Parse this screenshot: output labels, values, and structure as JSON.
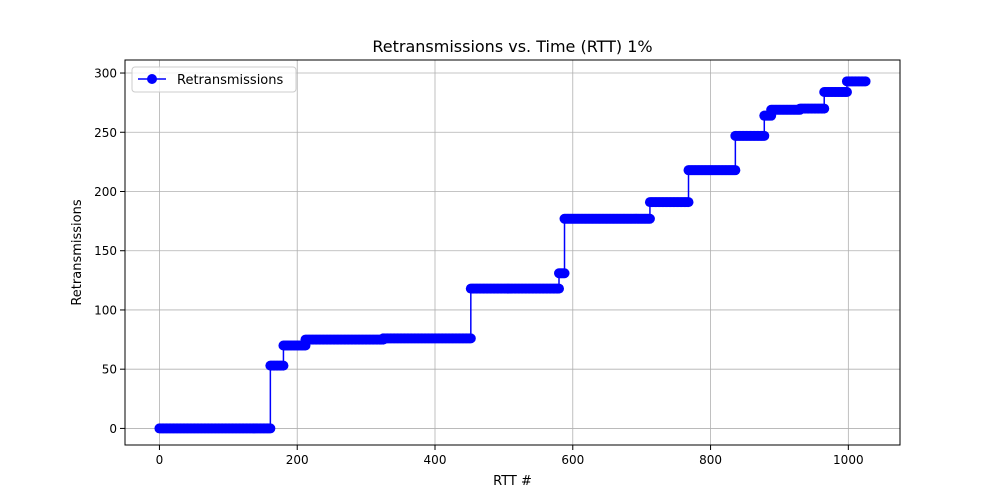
{
  "chart_data": {
    "type": "line",
    "title": "Retransmissions vs. Time (RTT) 1%",
    "xlabel": "RTT #",
    "ylabel": "Retransmissions",
    "xlim": [
      -50,
      1075
    ],
    "ylim": [
      -14,
      311
    ],
    "x_ticks": [
      0,
      200,
      400,
      600,
      800,
      1000
    ],
    "y_ticks": [
      0,
      50,
      100,
      150,
      200,
      250,
      300
    ],
    "grid": true,
    "legend": {
      "position": "top-left",
      "entries": [
        "Retransmissions"
      ]
    },
    "series": [
      {
        "name": "Retransmissions",
        "color": "#0000ff",
        "marker": "circle",
        "steps": [
          {
            "x_start": 0,
            "x_end": 161,
            "y": 0
          },
          {
            "x_start": 161,
            "x_end": 180,
            "y": 53
          },
          {
            "x_start": 180,
            "x_end": 212,
            "y": 70
          },
          {
            "x_start": 212,
            "x_end": 325,
            "y": 75
          },
          {
            "x_start": 325,
            "x_end": 452,
            "y": 76
          },
          {
            "x_start": 452,
            "x_end": 580,
            "y": 118
          },
          {
            "x_start": 580,
            "x_end": 588,
            "y": 131
          },
          {
            "x_start": 588,
            "x_end": 712,
            "y": 177
          },
          {
            "x_start": 712,
            "x_end": 768,
            "y": 191
          },
          {
            "x_start": 768,
            "x_end": 836,
            "y": 218
          },
          {
            "x_start": 836,
            "x_end": 878,
            "y": 247
          },
          {
            "x_start": 878,
            "x_end": 888,
            "y": 264
          },
          {
            "x_start": 888,
            "x_end": 930,
            "y": 269
          },
          {
            "x_start": 930,
            "x_end": 965,
            "y": 270
          },
          {
            "x_start": 965,
            "x_end": 998,
            "y": 284
          },
          {
            "x_start": 998,
            "x_end": 1025,
            "y": 293
          }
        ]
      }
    ]
  }
}
